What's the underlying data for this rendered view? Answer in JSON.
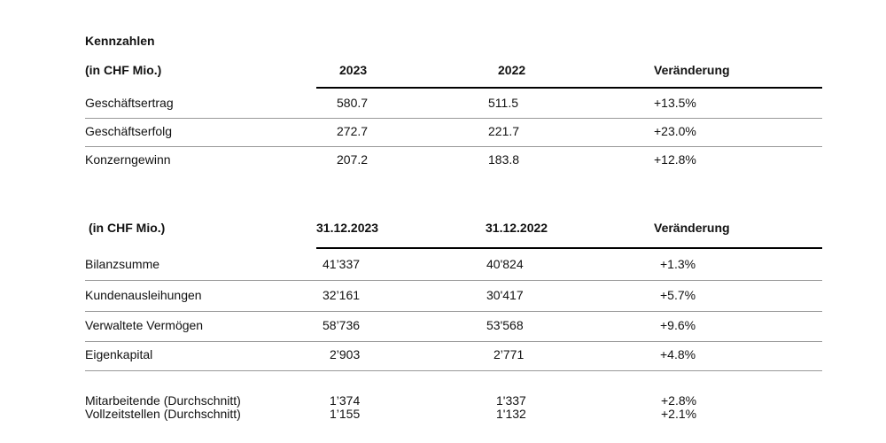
{
  "title": "Kennzahlen",
  "table1": {
    "header": [
      "(in CHF Mio.)",
      "2023",
      "2022",
      "Veränderung"
    ],
    "rows": [
      [
        "Geschäftsertrag",
        "580.7",
        "511.5",
        "+13.5%"
      ],
      [
        "Geschäftserfolg",
        "272.7",
        "221.7",
        "+23.0%"
      ],
      [
        "Konzerngewinn",
        "207.2",
        "183.8",
        "+12.8%"
      ]
    ]
  },
  "table2": {
    "header": [
      "(in CHF Mio.)",
      "31.12.2023",
      "31.12.2022",
      "Veränderung"
    ],
    "rows": [
      [
        "Bilanzsumme",
        "41’337",
        "40'824",
        "+1.3%"
      ],
      [
        "Kundenausleihungen",
        "32’161",
        "30'417",
        "+5.7%"
      ],
      [
        "Verwaltete Vermögen",
        "58’736",
        "53'568",
        "+9.6%"
      ],
      [
        "Eigenkapital",
        "2’903",
        "2’771",
        "+4.8%"
      ]
    ]
  },
  "footer": {
    "rows": [
      [
        "Mitarbeitende (Durchschnitt)",
        "1’374",
        "1'337",
        "+2.8%"
      ],
      [
        "Vollzeitstellen (Durchschnitt)",
        "1’155",
        "1'132",
        "+2.1%"
      ]
    ]
  }
}
